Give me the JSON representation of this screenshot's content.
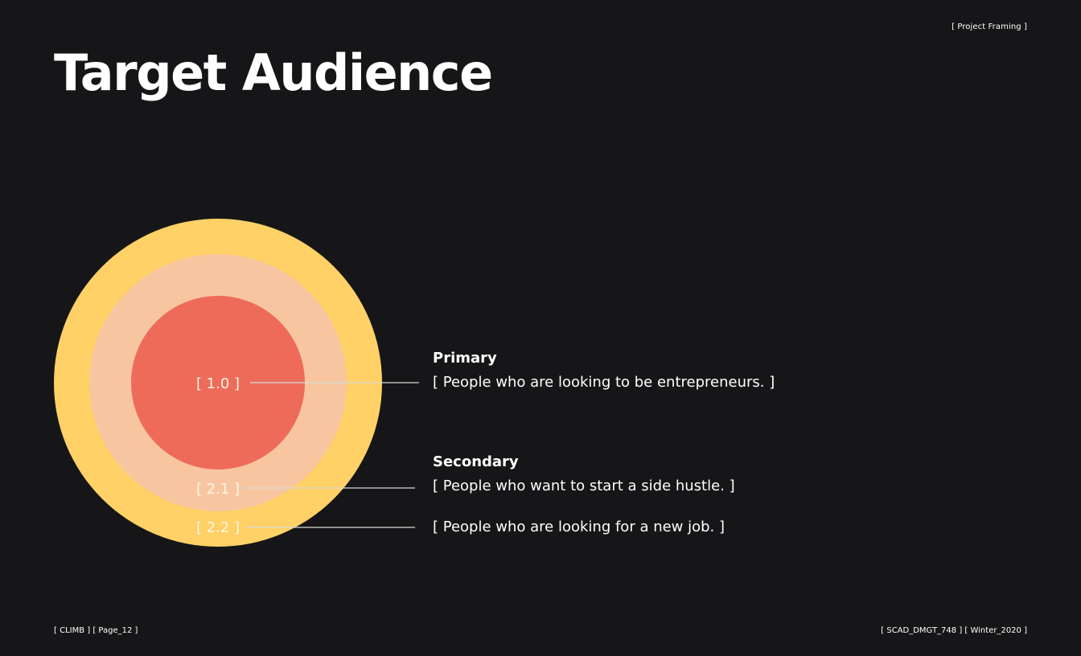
{
  "header": {
    "section_tag": "[ Project Framing ]",
    "title": "Target Audience"
  },
  "diagram": {
    "rings": [
      {
        "label": "[ 2.2 ]",
        "color": "#ffd166"
      },
      {
        "label": "[ 2.1 ]",
        "color": "#f7c6a0"
      },
      {
        "label": "[ 1.0 ]",
        "color": "#ee6b5a"
      }
    ],
    "leader_line_color": "#d9d9d9"
  },
  "audience": {
    "primary": {
      "heading": "Primary",
      "items": [
        "[ People who are looking to be entrepreneurs. ]"
      ]
    },
    "secondary": {
      "heading": "Secondary",
      "items": [
        "[ People who want to start a side hustle. ]",
        "[ People who are looking for a new job. ]"
      ]
    }
  },
  "footer": {
    "left": "[ CLIMB ] [ Page_12 ]",
    "right": "[ SCAD_DMGT_748 ] [ Winter_2020 ]"
  }
}
